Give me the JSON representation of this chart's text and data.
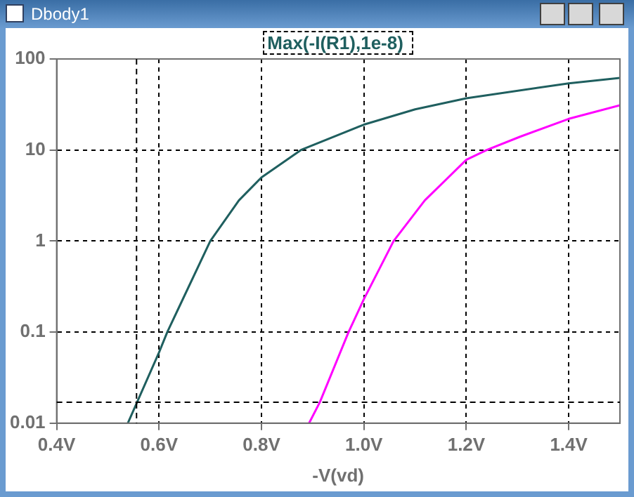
{
  "chart_data": {
    "type": "line",
    "title": "Dbody1",
    "xlabel": "-V(vd)",
    "xlim": [
      0.4,
      1.5
    ],
    "xticks": [
      {
        "value": 0.4,
        "label": "0.4V"
      },
      {
        "value": 0.6,
        "label": "0.6V"
      },
      {
        "value": 0.8,
        "label": "0.8V"
      },
      {
        "value": 1.0,
        "label": "1.0V"
      },
      {
        "value": 1.2,
        "label": "1.2V"
      },
      {
        "value": 1.4,
        "label": "1.4V"
      }
    ],
    "ylim": [
      0.01,
      100
    ],
    "yticks": [
      0.01,
      0.1,
      1,
      10,
      100
    ],
    "log": "y",
    "grid": true,
    "legend": "top",
    "marker": "none",
    "line_style": "solid",
    "series": [
      {
        "name": "Max(-I(R1),1e-8)",
        "color": "#1f5f5f",
        "x": [
          0.539,
          0.6,
          0.616,
          0.7,
          0.756,
          0.8,
          0.877,
          1.0,
          1.1,
          1.2,
          1.4,
          1.5
        ],
        "values": [
          0.01,
          0.06,
          0.1,
          1,
          2.8,
          5,
          10,
          19,
          28,
          37,
          54,
          62
        ]
      },
      {
        "color": "#ff00ff",
        "x": [
          0.893,
          0.914,
          0.97,
          1.0,
          1.058,
          1.119,
          1.2,
          1.24,
          1.305,
          1.4,
          1.5
        ],
        "values": [
          0.01,
          0.017,
          0.1,
          0.23,
          1,
          2.8,
          7.8,
          10,
          14,
          22,
          31
        ]
      }
    ],
    "ref_lines": [
      {
        "axis": "y",
        "value": 0.017,
        "color": "#000000",
        "line_style": "dashed"
      },
      {
        "axis": "x",
        "value": 0.556,
        "color": "#000000",
        "line_style": "dashed"
      }
    ]
  }
}
